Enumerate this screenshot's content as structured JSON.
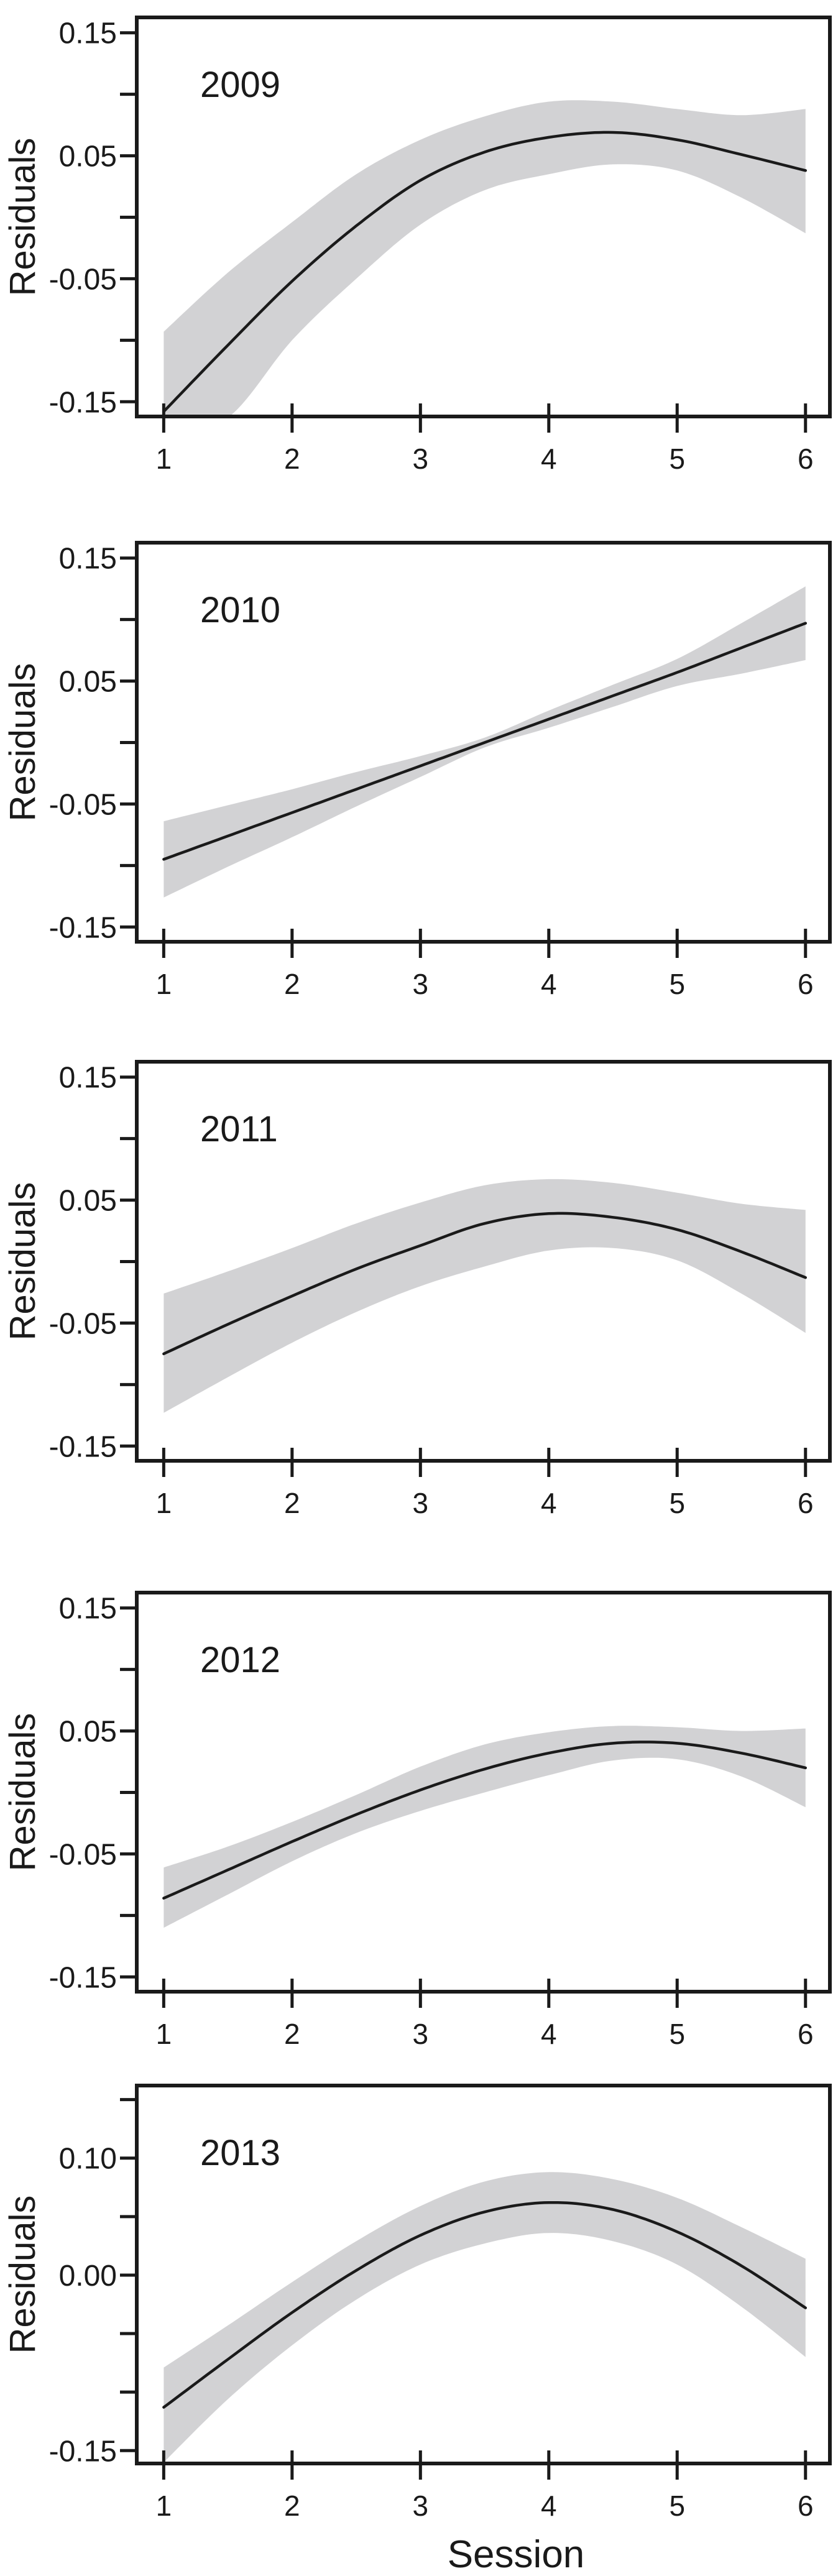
{
  "figure": {
    "ylabel": "Residuals",
    "xlabel": "Session",
    "colors": {
      "line": "#1a1a1a",
      "band": "#d2d2d4",
      "text": "#1a1a1a",
      "background": "#ffffff"
    }
  },
  "chart_data": [
    {
      "type": "line",
      "title": "2009",
      "x": [
        1,
        1.5,
        2,
        2.5,
        3,
        3.5,
        4,
        4.5,
        5,
        5.5,
        6
      ],
      "series": [
        {
          "name": "smooth_fit",
          "values": [
            -0.158,
            -0.104,
            -0.052,
            -0.007,
            0.03,
            0.053,
            0.065,
            0.069,
            0.063,
            0.051,
            0.038
          ]
        },
        {
          "name": "ci_upper",
          "values": [
            -0.093,
            -0.045,
            -0.004,
            0.035,
            0.063,
            0.082,
            0.094,
            0.094,
            0.088,
            0.083,
            0.088
          ]
        },
        {
          "name": "ci_lower",
          "values": [
            -0.178,
            -0.163,
            -0.1,
            -0.05,
            -0.006,
            0.022,
            0.035,
            0.043,
            0.038,
            0.016,
            -0.013
          ]
        }
      ],
      "xlim": [
        0.79,
        6.19
      ],
      "ylim": [
        -0.162,
        0.1625
      ],
      "xticks": [
        1,
        2,
        3,
        4,
        5,
        6
      ],
      "xtick_labels": [
        "1",
        "2",
        "3",
        "4",
        "5",
        "6"
      ],
      "yticks": [
        -0.15,
        -0.1,
        -0.05,
        0.0,
        0.05,
        0.1,
        0.15
      ],
      "ytick_labels": [
        {
          "value": 0.15,
          "label": "0.15"
        },
        {
          "value": 0.05,
          "label": "0.05"
        },
        {
          "value": -0.05,
          "label": "-0.05"
        },
        {
          "value": -0.15,
          "label": "-0.15"
        }
      ],
      "grid": false,
      "legend": "none"
    },
    {
      "type": "line",
      "title": "2010",
      "x": [
        1,
        1.5,
        2,
        2.5,
        3,
        3.5,
        4,
        4.5,
        5,
        5.5,
        6
      ],
      "series": [
        {
          "name": "smooth_fit",
          "values": [
            -0.095,
            -0.076,
            -0.057,
            -0.038,
            -0.019,
            0.0,
            0.019,
            0.038,
            0.057,
            0.077,
            0.097
          ]
        },
        {
          "name": "ci_upper",
          "values": [
            -0.064,
            -0.051,
            -0.038,
            -0.024,
            -0.011,
            0.004,
            0.026,
            0.047,
            0.068,
            0.097,
            0.127
          ]
        },
        {
          "name": "ci_lower",
          "values": [
            -0.126,
            -0.101,
            -0.077,
            -0.052,
            -0.028,
            -0.004,
            0.012,
            0.029,
            0.046,
            0.056,
            0.067
          ]
        }
      ],
      "xlim": [
        0.79,
        6.19
      ],
      "ylim": [
        -0.162,
        0.1625
      ],
      "xticks": [
        1,
        2,
        3,
        4,
        5,
        6
      ],
      "xtick_labels": [
        "1",
        "2",
        "3",
        "4",
        "5",
        "6"
      ],
      "yticks": [
        -0.15,
        -0.1,
        -0.05,
        0.0,
        0.05,
        0.1,
        0.15
      ],
      "ytick_labels": [
        {
          "value": 0.15,
          "label": "0.15"
        },
        {
          "value": 0.05,
          "label": "0.05"
        },
        {
          "value": -0.05,
          "label": "-0.05"
        },
        {
          "value": -0.15,
          "label": "-0.15"
        }
      ],
      "grid": false,
      "legend": "none"
    },
    {
      "type": "line",
      "title": "2011",
      "x": [
        1,
        1.5,
        2,
        2.5,
        3,
        3.5,
        4,
        4.5,
        5,
        5.5,
        6
      ],
      "series": [
        {
          "name": "smooth_fit",
          "values": [
            -0.075,
            -0.051,
            -0.028,
            -0.006,
            0.013,
            0.031,
            0.039,
            0.036,
            0.026,
            0.008,
            -0.013
          ]
        },
        {
          "name": "ci_upper",
          "values": [
            -0.026,
            -0.008,
            0.011,
            0.031,
            0.048,
            0.062,
            0.067,
            0.064,
            0.056,
            0.047,
            0.042
          ]
        },
        {
          "name": "ci_lower",
          "values": [
            -0.123,
            -0.094,
            -0.066,
            -0.041,
            -0.02,
            -0.004,
            0.009,
            0.011,
            0.001,
            -0.026,
            -0.058
          ]
        }
      ],
      "xlim": [
        0.79,
        6.19
      ],
      "ylim": [
        -0.162,
        0.1625
      ],
      "xticks": [
        1,
        2,
        3,
        4,
        5,
        6
      ],
      "xtick_labels": [
        "1",
        "2",
        "3",
        "4",
        "5",
        "6"
      ],
      "yticks": [
        -0.15,
        -0.1,
        -0.05,
        0.0,
        0.05,
        0.1,
        0.15
      ],
      "ytick_labels": [
        {
          "value": 0.15,
          "label": "0.15"
        },
        {
          "value": 0.05,
          "label": "0.05"
        },
        {
          "value": -0.05,
          "label": "-0.05"
        },
        {
          "value": -0.15,
          "label": "-0.15"
        }
      ],
      "grid": false,
      "legend": "none"
    },
    {
      "type": "line",
      "title": "2012",
      "x": [
        1,
        1.5,
        2,
        2.5,
        3,
        3.5,
        4,
        4.5,
        5,
        5.5,
        6
      ],
      "series": [
        {
          "name": "smooth_fit",
          "values": [
            -0.086,
            -0.063,
            -0.04,
            -0.018,
            0.002,
            0.019,
            0.032,
            0.04,
            0.04,
            0.032,
            0.02
          ]
        },
        {
          "name": "ci_upper",
          "values": [
            -0.061,
            -0.044,
            -0.024,
            -0.002,
            0.021,
            0.039,
            0.049,
            0.054,
            0.053,
            0.05,
            0.052
          ]
        },
        {
          "name": "ci_lower",
          "values": [
            -0.11,
            -0.083,
            -0.056,
            -0.033,
            -0.015,
            0.0,
            0.014,
            0.026,
            0.027,
            0.013,
            -0.012
          ]
        }
      ],
      "xlim": [
        0.79,
        6.19
      ],
      "ylim": [
        -0.162,
        0.1625
      ],
      "xticks": [
        1,
        2,
        3,
        4,
        5,
        6
      ],
      "xtick_labels": [
        "1",
        "2",
        "3",
        "4",
        "5",
        "6"
      ],
      "yticks": [
        -0.15,
        -0.1,
        -0.05,
        0.0,
        0.05,
        0.1,
        0.15
      ],
      "ytick_labels": [
        {
          "value": 0.15,
          "label": "0.15"
        },
        {
          "value": 0.05,
          "label": "0.05"
        },
        {
          "value": -0.05,
          "label": "-0.05"
        },
        {
          "value": -0.15,
          "label": "-0.15"
        }
      ],
      "grid": false,
      "legend": "none"
    },
    {
      "type": "line",
      "title": "2013",
      "x": [
        1,
        1.5,
        2,
        2.5,
        3,
        3.5,
        4,
        4.5,
        5,
        5.5,
        6
      ],
      "series": [
        {
          "name": "smooth_fit",
          "values": [
            -0.113,
            -0.072,
            -0.032,
            0.004,
            0.034,
            0.054,
            0.062,
            0.056,
            0.037,
            0.008,
            -0.028
          ]
        },
        {
          "name": "ci_upper",
          "values": [
            -0.079,
            -0.043,
            -0.006,
            0.029,
            0.059,
            0.08,
            0.088,
            0.082,
            0.066,
            0.041,
            0.014
          ]
        },
        {
          "name": "ci_lower",
          "values": [
            -0.16,
            -0.106,
            -0.06,
            -0.021,
            0.009,
            0.027,
            0.036,
            0.029,
            0.009,
            -0.027,
            -0.07
          ]
        }
      ],
      "xlim": [
        0.79,
        6.19
      ],
      "ylim": [
        -0.161,
        0.162
      ],
      "xticks": [
        1,
        2,
        3,
        4,
        5,
        6
      ],
      "xtick_labels": [
        "1",
        "2",
        "3",
        "4",
        "5",
        "6"
      ],
      "yticks": [
        -0.15,
        -0.1,
        -0.05,
        0.0,
        0.05,
        0.1,
        0.15
      ],
      "ytick_labels": [
        {
          "value": 0.1,
          "label": "0.10"
        },
        {
          "value": 0.0,
          "label": "0.00"
        },
        {
          "value": -0.15,
          "label": "-0.15"
        }
      ],
      "grid": false,
      "legend": "none"
    }
  ]
}
